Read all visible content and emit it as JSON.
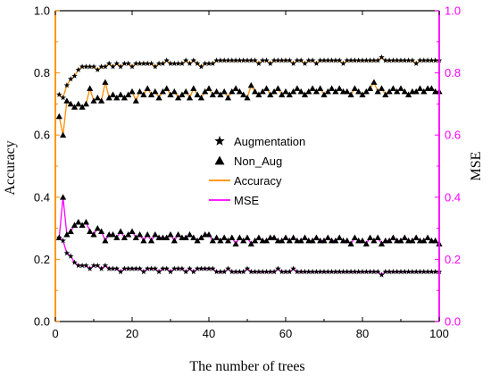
{
  "chart_data": {
    "type": "line",
    "xlabel": "The number of trees",
    "ylabel_left": "Accuracy",
    "ylabel_right": "MSE",
    "xlim": [
      0,
      100
    ],
    "ylim_left": [
      0,
      1
    ],
    "ylim_right": [
      0,
      1
    ],
    "x_ticks": [
      0,
      20,
      40,
      60,
      80,
      100
    ],
    "x_tick_labels": [
      "0",
      "20",
      "40",
      "60",
      "80",
      "100"
    ],
    "y_ticks": [
      0,
      0.2,
      0.4,
      0.6,
      0.8,
      1.0
    ],
    "y_tick_labels": [
      "0.0",
      "0.2",
      "0.4",
      "0.6",
      "0.8",
      "1.0"
    ],
    "grid": false,
    "legend_position": "center",
    "colors": {
      "accuracy": "#ff8c00",
      "mse": "#ff00ff",
      "axis_right": "#ff00ff",
      "marker": "#000000"
    },
    "legend": [
      {
        "label": "Augmentation",
        "symbol": "star"
      },
      {
        "label": "Non_Aug",
        "symbol": "triangle"
      },
      {
        "label": "Accuracy",
        "symbol": "line",
        "color": "#ff8c00"
      },
      {
        "label": "MSE",
        "symbol": "line",
        "color": "#ff00ff"
      }
    ],
    "x": [
      1,
      2,
      3,
      4,
      5,
      6,
      7,
      8,
      9,
      10,
      11,
      12,
      13,
      14,
      15,
      16,
      17,
      18,
      19,
      20,
      21,
      22,
      23,
      24,
      25,
      26,
      27,
      28,
      29,
      30,
      31,
      32,
      33,
      34,
      35,
      36,
      37,
      38,
      39,
      40,
      41,
      42,
      43,
      44,
      45,
      46,
      47,
      48,
      49,
      50,
      51,
      52,
      53,
      54,
      55,
      56,
      57,
      58,
      59,
      60,
      61,
      62,
      63,
      64,
      65,
      66,
      67,
      68,
      69,
      70,
      71,
      72,
      73,
      74,
      75,
      76,
      77,
      78,
      79,
      80,
      81,
      82,
      83,
      84,
      85,
      86,
      87,
      88,
      89,
      90,
      91,
      92,
      93,
      94,
      95,
      96,
      97,
      98,
      99,
      100
    ],
    "series": [
      {
        "name": "Augmentation",
        "metric": "Accuracy",
        "marker": "star",
        "values": [
          0.73,
          0.72,
          0.76,
          0.78,
          0.79,
          0.81,
          0.82,
          0.82,
          0.82,
          0.82,
          0.81,
          0.82,
          0.82,
          0.83,
          0.82,
          0.83,
          0.82,
          0.83,
          0.83,
          0.82,
          0.83,
          0.83,
          0.83,
          0.83,
          0.83,
          0.82,
          0.83,
          0.83,
          0.84,
          0.83,
          0.83,
          0.83,
          0.83,
          0.84,
          0.83,
          0.84,
          0.83,
          0.82,
          0.83,
          0.83,
          0.83,
          0.84,
          0.84,
          0.84,
          0.84,
          0.84,
          0.84,
          0.84,
          0.84,
          0.84,
          0.84,
          0.84,
          0.83,
          0.84,
          0.84,
          0.83,
          0.84,
          0.84,
          0.84,
          0.84,
          0.84,
          0.83,
          0.84,
          0.84,
          0.83,
          0.84,
          0.84,
          0.83,
          0.84,
          0.84,
          0.84,
          0.84,
          0.84,
          0.84,
          0.83,
          0.84,
          0.84,
          0.84,
          0.84,
          0.84,
          0.84,
          0.84,
          0.84,
          0.84,
          0.85,
          0.84,
          0.84,
          0.84,
          0.84,
          0.84,
          0.84,
          0.84,
          0.84,
          0.83,
          0.84,
          0.84,
          0.84,
          0.84,
          0.84,
          0.84
        ]
      },
      {
        "name": "Non_Aug",
        "metric": "Accuracy",
        "marker": "triangle",
        "values": [
          0.66,
          0.6,
          0.71,
          0.7,
          0.69,
          0.7,
          0.69,
          0.7,
          0.75,
          0.71,
          0.72,
          0.71,
          0.77,
          0.72,
          0.73,
          0.72,
          0.73,
          0.72,
          0.73,
          0.74,
          0.71,
          0.74,
          0.73,
          0.75,
          0.73,
          0.74,
          0.72,
          0.74,
          0.75,
          0.73,
          0.74,
          0.72,
          0.73,
          0.74,
          0.72,
          0.75,
          0.73,
          0.72,
          0.74,
          0.75,
          0.73,
          0.74,
          0.73,
          0.74,
          0.72,
          0.74,
          0.75,
          0.74,
          0.73,
          0.72,
          0.76,
          0.74,
          0.73,
          0.74,
          0.75,
          0.73,
          0.74,
          0.75,
          0.73,
          0.74,
          0.73,
          0.74,
          0.75,
          0.74,
          0.73,
          0.74,
          0.75,
          0.74,
          0.75,
          0.73,
          0.74,
          0.75,
          0.74,
          0.75,
          0.74,
          0.74,
          0.73,
          0.75,
          0.74,
          0.73,
          0.74,
          0.75,
          0.77,
          0.74,
          0.75,
          0.73,
          0.74,
          0.75,
          0.74,
          0.75,
          0.74,
          0.73,
          0.74,
          0.74,
          0.75,
          0.74,
          0.75,
          0.75,
          0.74,
          0.74
        ]
      },
      {
        "name": "Non_Aug",
        "metric": "MSE",
        "marker": "triangle",
        "values": [
          0.27,
          0.4,
          0.28,
          0.29,
          0.31,
          0.32,
          0.31,
          0.32,
          0.29,
          0.28,
          0.3,
          0.29,
          0.26,
          0.28,
          0.28,
          0.27,
          0.29,
          0.27,
          0.28,
          0.29,
          0.27,
          0.28,
          0.26,
          0.28,
          0.26,
          0.28,
          0.27,
          0.27,
          0.27,
          0.28,
          0.26,
          0.28,
          0.27,
          0.27,
          0.28,
          0.27,
          0.26,
          0.27,
          0.28,
          0.28,
          0.26,
          0.27,
          0.26,
          0.27,
          0.26,
          0.27,
          0.25,
          0.27,
          0.26,
          0.27,
          0.25,
          0.26,
          0.27,
          0.26,
          0.26,
          0.27,
          0.27,
          0.26,
          0.26,
          0.27,
          0.26,
          0.27,
          0.26,
          0.26,
          0.27,
          0.26,
          0.26,
          0.27,
          0.26,
          0.26,
          0.27,
          0.26,
          0.26,
          0.27,
          0.26,
          0.26,
          0.25,
          0.27,
          0.26,
          0.26,
          0.25,
          0.27,
          0.26,
          0.27,
          0.25,
          0.26,
          0.26,
          0.27,
          0.26,
          0.26,
          0.27,
          0.26,
          0.26,
          0.27,
          0.26,
          0.26,
          0.27,
          0.26,
          0.26,
          0.25
        ]
      },
      {
        "name": "Augmentation",
        "metric": "MSE",
        "marker": "star",
        "values": [
          0.27,
          0.26,
          0.22,
          0.21,
          0.19,
          0.18,
          0.18,
          0.18,
          0.17,
          0.18,
          0.18,
          0.17,
          0.18,
          0.17,
          0.17,
          0.17,
          0.16,
          0.17,
          0.17,
          0.17,
          0.17,
          0.17,
          0.16,
          0.17,
          0.17,
          0.17,
          0.16,
          0.17,
          0.17,
          0.16,
          0.17,
          0.17,
          0.17,
          0.16,
          0.17,
          0.16,
          0.17,
          0.17,
          0.17,
          0.17,
          0.17,
          0.16,
          0.16,
          0.16,
          0.17,
          0.16,
          0.16,
          0.16,
          0.16,
          0.17,
          0.16,
          0.16,
          0.16,
          0.16,
          0.16,
          0.16,
          0.16,
          0.17,
          0.16,
          0.16,
          0.16,
          0.17,
          0.16,
          0.16,
          0.16,
          0.16,
          0.16,
          0.16,
          0.16,
          0.16,
          0.16,
          0.16,
          0.16,
          0.16,
          0.16,
          0.16,
          0.16,
          0.16,
          0.16,
          0.16,
          0.16,
          0.16,
          0.16,
          0.16,
          0.15,
          0.16,
          0.16,
          0.16,
          0.16,
          0.16,
          0.16,
          0.16,
          0.16,
          0.16,
          0.16,
          0.16,
          0.16,
          0.16,
          0.16,
          0.16
        ]
      }
    ]
  }
}
